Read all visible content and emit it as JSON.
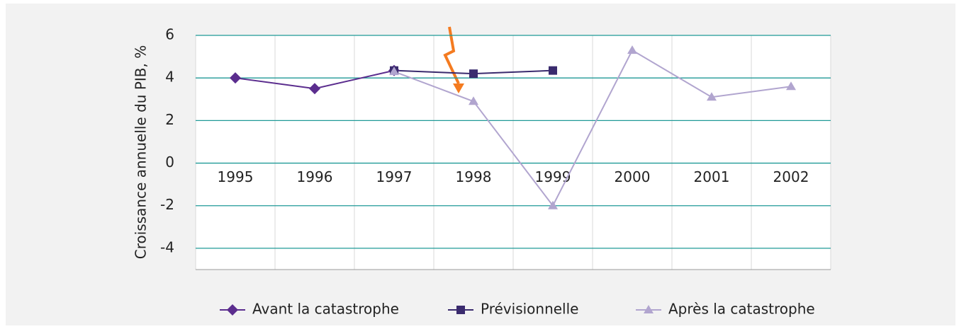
{
  "chart_data": {
    "type": "line",
    "y_label": "Croissance annuelle du PIB, %",
    "categories": [
      "1995",
      "1996",
      "1997",
      "1998",
      "1999",
      "2000",
      "2001",
      "2002"
    ],
    "series": [
      {
        "name": "Avant la catastrophe",
        "color": "#5b2d8e",
        "marker": "diamond",
        "values": [
          4.0,
          3.5,
          4.35,
          null,
          null,
          null,
          null,
          null
        ]
      },
      {
        "name": "Prévisionnelle",
        "color": "#3a2b6e",
        "marker": "square",
        "values": [
          null,
          null,
          4.35,
          4.2,
          4.35,
          null,
          null,
          null
        ]
      },
      {
        "name": "Après la catastrophe",
        "color": "#b1a5cf",
        "marker": "triangle",
        "values": [
          null,
          null,
          4.3,
          2.9,
          -2.0,
          5.3,
          3.1,
          3.6
        ]
      }
    ],
    "ylim": [
      -5,
      6
    ],
    "yticks": [
      -4,
      -2,
      0,
      2,
      4,
      6
    ],
    "grid": true,
    "legend": "bottom"
  }
}
